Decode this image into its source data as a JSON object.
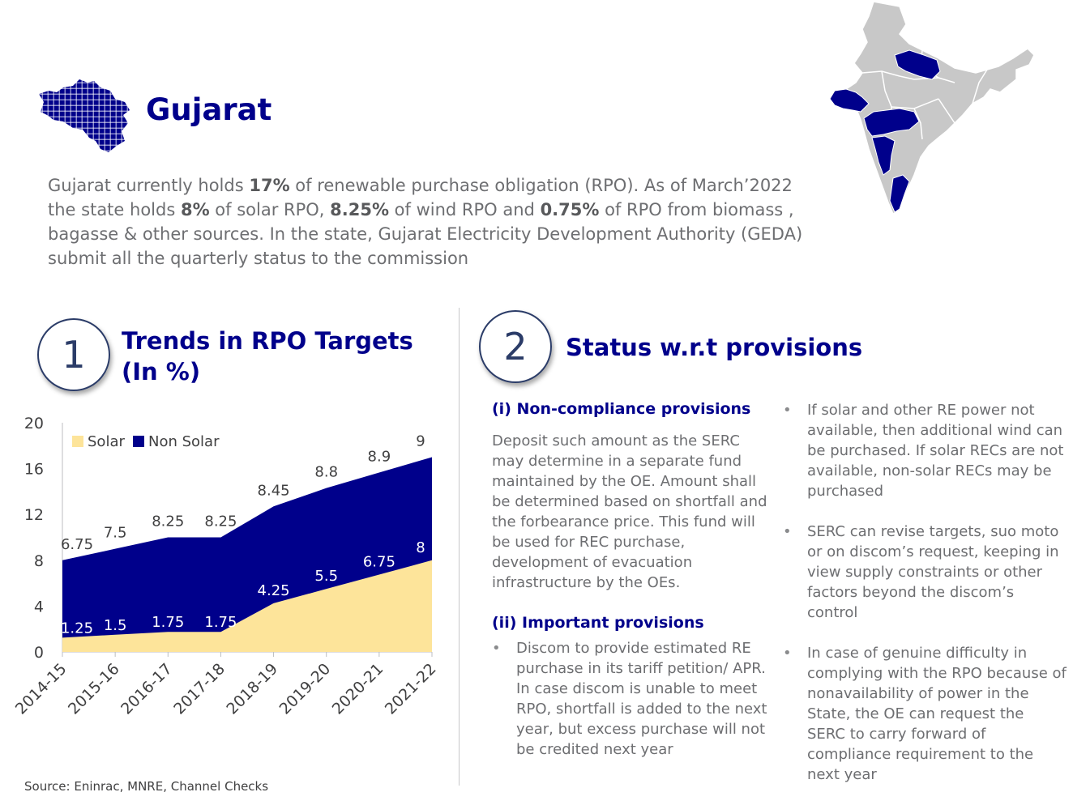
{
  "header": {
    "state_name": "Gujarat",
    "intro": {
      "p1": "Gujarat currently holds ",
      "b1": "17%",
      "p2": " of renewable purchase obligation (RPO). As of March’2022 the state holds ",
      "b2": "8%",
      "p3": " of solar RPO, ",
      "b3": "8.25%",
      "p4": " of wind RPO and ",
      "b4": "0.75%",
      "p5": " of RPO from biomass , bagasse & other sources. In the state,  Gujarat Electricity Development Authority (GEDA) submit all the quarterly status to the commission"
    }
  },
  "section1": {
    "number": "1",
    "title_line1": "Trends in RPO Targets",
    "title_line2": "(In %)"
  },
  "section2": {
    "number": "2",
    "title": "Status w.r.t provisions",
    "noncompliance_heading": "(i) Non-compliance provisions",
    "noncompliance_text": "Deposit such amount as the SERC may determine in a separate fund maintained by the OE. Amount shall be determined based on shortfall and the forbearance price. This fund will be used for REC purchase, development of evacuation infrastructure by the OEs.",
    "important_heading": "(ii) Important provisions",
    "important_bullets": [
      "Discom to provide estimated RE purchase in its tariff petition/ APR. In case discom is unable to meet RPO, shortfall is added to the next year, but excess purchase will not be credited next year"
    ],
    "right_bullets": [
      "If solar and other RE power not available, then additional wind can be purchased. If solar RECs are not available, non-solar RECs may be purchased",
      "SERC can revise targets, suo moto or on discom’s request, keeping in view supply constraints or other factors beyond the discom’s control",
      "In case of genuine difficulty in complying with the RPO because of nonavailability of power in the State, the OE can request the SERC to carry forward of compliance requirement to the next year"
    ],
    "bullet_char": "•"
  },
  "source": "Source: Eninrac,  MNRE, Channel Checks",
  "colors": {
    "solar": "#fde49a",
    "non_solar": "#00008b",
    "accent": "#00008b",
    "map_grey": "#c8c8c8"
  },
  "chart_data": {
    "type": "area",
    "stacked": true,
    "categories": [
      "2014-15",
      "2015-16",
      "2016-17",
      "2017-18",
      "2018-19",
      "2019-20",
      "2020-21",
      "2021-22"
    ],
    "series": [
      {
        "name": "Solar",
        "values": [
          1.25,
          1.5,
          1.75,
          1.75,
          4.25,
          5.5,
          6.75,
          8
        ]
      },
      {
        "name": "Non Solar",
        "values": [
          6.75,
          7.5,
          8.25,
          8.25,
          8.45,
          8.8,
          8.9,
          9
        ]
      }
    ],
    "ylim": [
      0,
      20
    ],
    "yticks": [
      0,
      4,
      8,
      12,
      16,
      20
    ],
    "legend_position": "top-left",
    "title": "",
    "xlabel": "",
    "ylabel": ""
  }
}
